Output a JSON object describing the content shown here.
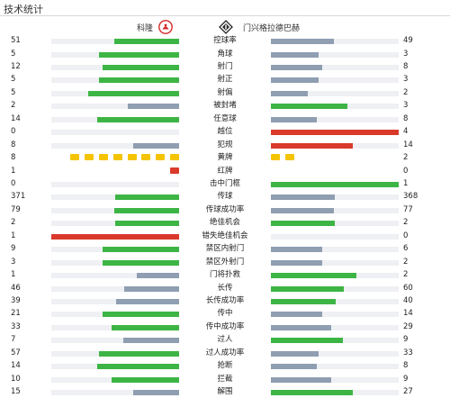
{
  "header": {
    "title": "技术统计"
  },
  "teams": {
    "home": "科隆",
    "away": "门兴格拉德巴赫"
  },
  "colors": {
    "green": "#3db545",
    "gray": "#8f9eb1",
    "red": "#d93a2b",
    "yellow": "#f5c400",
    "track": "#eef0f3"
  },
  "stats": [
    {
      "label": "控球率",
      "left": "51",
      "right": "49",
      "lf": 0.51,
      "rf": 0.49,
      "lc": "green",
      "rc": "gray"
    },
    {
      "label": "角球",
      "left": "5",
      "right": "3",
      "lf": 0.625,
      "rf": 0.375,
      "lc": "green",
      "rc": "gray"
    },
    {
      "label": "射门",
      "left": "12",
      "right": "8",
      "lf": 0.6,
      "rf": 0.4,
      "lc": "green",
      "rc": "gray"
    },
    {
      "label": "射正",
      "left": "5",
      "right": "3",
      "lf": 0.625,
      "rf": 0.375,
      "lc": "green",
      "rc": "gray"
    },
    {
      "label": "射偏",
      "left": "5",
      "right": "2",
      "lf": 0.71,
      "rf": 0.29,
      "lc": "green",
      "rc": "gray"
    },
    {
      "label": "被封堵",
      "left": "2",
      "right": "3",
      "lf": 0.4,
      "rf": 0.6,
      "lc": "gray",
      "rc": "green"
    },
    {
      "label": "任意球",
      "left": "14",
      "right": "8",
      "lf": 0.64,
      "rf": 0.36,
      "lc": "green",
      "rc": "gray"
    },
    {
      "label": "越位",
      "left": "0",
      "right": "4",
      "lf": 0,
      "rf": 1,
      "lc": "gray",
      "rc": "red"
    },
    {
      "label": "犯规",
      "left": "8",
      "right": "14",
      "lf": 0.36,
      "rf": 0.64,
      "lc": "gray",
      "rc": "red"
    },
    {
      "label": "黄牌",
      "left": "8",
      "right": "2",
      "cards": "yellow"
    },
    {
      "label": "红牌",
      "left": "1",
      "right": "0",
      "cards": "red"
    },
    {
      "label": "击中门框",
      "left": "0",
      "right": "1",
      "lf": 0,
      "rf": 1,
      "lc": "gray",
      "rc": "green"
    },
    {
      "label": "传球",
      "left": "371",
      "right": "368",
      "lf": 0.502,
      "rf": 0.498,
      "lc": "green",
      "rc": "gray"
    },
    {
      "label": "传球成功率",
      "left": "79",
      "right": "77",
      "lf": 0.506,
      "rf": 0.494,
      "lc": "green",
      "rc": "gray"
    },
    {
      "label": "绝佳机会",
      "left": "2",
      "right": "2",
      "lf": 0.5,
      "rf": 0.5,
      "lc": "green",
      "rc": "green"
    },
    {
      "label": "错失绝佳机会",
      "left": "1",
      "right": "0",
      "lf": 1,
      "rf": 0,
      "lc": "red",
      "rc": "gray"
    },
    {
      "label": "禁区内射门",
      "left": "9",
      "right": "6",
      "lf": 0.6,
      "rf": 0.4,
      "lc": "green",
      "rc": "gray"
    },
    {
      "label": "禁区外射门",
      "left": "3",
      "right": "2",
      "lf": 0.6,
      "rf": 0.4,
      "lc": "green",
      "rc": "gray"
    },
    {
      "label": "门将扑救",
      "left": "1",
      "right": "2",
      "lf": 0.33,
      "rf": 0.67,
      "lc": "gray",
      "rc": "green"
    },
    {
      "label": "长传",
      "left": "46",
      "right": "60",
      "lf": 0.43,
      "rf": 0.57,
      "lc": "gray",
      "rc": "green"
    },
    {
      "label": "长传成功率",
      "left": "39",
      "right": "40",
      "lf": 0.49,
      "rf": 0.51,
      "lc": "gray",
      "rc": "green"
    },
    {
      "label": "传中",
      "left": "21",
      "right": "14",
      "lf": 0.6,
      "rf": 0.4,
      "lc": "green",
      "rc": "gray"
    },
    {
      "label": "传中成功率",
      "left": "33",
      "right": "29",
      "lf": 0.53,
      "rf": 0.47,
      "lc": "green",
      "rc": "gray"
    },
    {
      "label": "过人",
      "left": "7",
      "right": "9",
      "lf": 0.44,
      "rf": 0.56,
      "lc": "gray",
      "rc": "green"
    },
    {
      "label": "过人成功率",
      "left": "57",
      "right": "33",
      "lf": 0.63,
      "rf": 0.37,
      "lc": "green",
      "rc": "gray"
    },
    {
      "label": "抢断",
      "left": "14",
      "right": "8",
      "lf": 0.64,
      "rf": 0.36,
      "lc": "green",
      "rc": "gray"
    },
    {
      "label": "拦截",
      "left": "10",
      "right": "9",
      "lf": 0.53,
      "rf": 0.47,
      "lc": "green",
      "rc": "gray"
    },
    {
      "label": "解围",
      "left": "15",
      "right": "27",
      "lf": 0.36,
      "rf": 0.64,
      "lc": "gray",
      "rc": "green"
    }
  ]
}
